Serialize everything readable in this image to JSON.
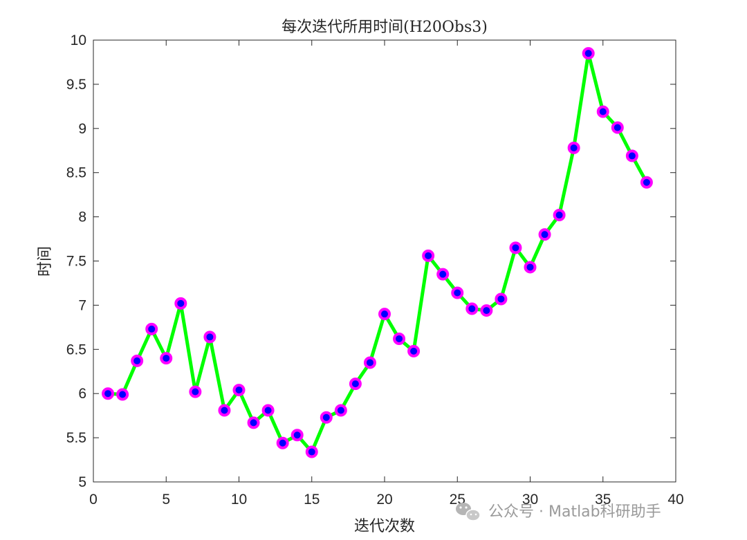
{
  "chart_data": {
    "type": "line",
    "title": "每次迭代所用时间(H20Obs3)",
    "xlabel": "迭代次数",
    "ylabel": "时间",
    "xlim": [
      0,
      40
    ],
    "ylim": [
      5,
      10
    ],
    "xticks": [
      0,
      5,
      10,
      15,
      20,
      25,
      30,
      35,
      40
    ],
    "yticks": [
      5,
      5.5,
      6,
      6.5,
      7,
      7.5,
      8,
      8.5,
      9,
      9.5,
      10
    ],
    "grid": false,
    "line_color": "#00ff00",
    "marker_face_color": "#0000ff",
    "marker_edge_color": "#ff00ff",
    "x": [
      1,
      2,
      3,
      4,
      5,
      6,
      7,
      8,
      9,
      10,
      11,
      12,
      13,
      14,
      15,
      16,
      17,
      18,
      19,
      20,
      21,
      22,
      23,
      24,
      25,
      26,
      27,
      28,
      29,
      30,
      31,
      32,
      33,
      34,
      35,
      36,
      37,
      38
    ],
    "y": [
      6.0,
      5.99,
      6.37,
      6.73,
      6.4,
      7.02,
      6.02,
      6.64,
      5.81,
      6.04,
      5.67,
      5.81,
      5.44,
      5.53,
      5.34,
      5.73,
      5.81,
      6.11,
      6.35,
      6.9,
      6.62,
      6.48,
      7.56,
      7.35,
      7.14,
      6.96,
      6.94,
      7.07,
      7.65,
      7.43,
      7.8,
      8.02,
      8.78,
      9.85,
      9.19,
      9.01,
      8.69,
      8.39
    ]
  },
  "watermark": {
    "text": "公众号 · Matlab科研助手",
    "icon": "wechat-icon"
  }
}
